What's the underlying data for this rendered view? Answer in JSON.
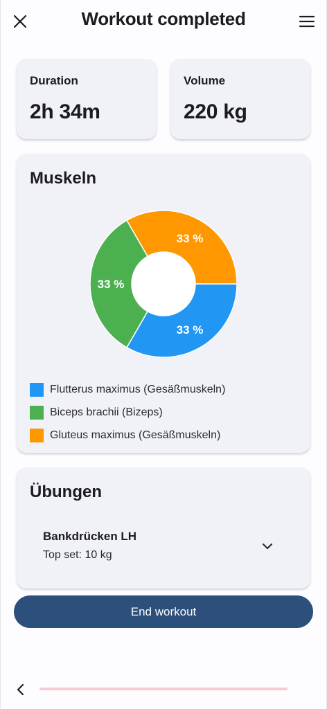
{
  "header": {
    "title": "Workout completed",
    "close_icon": "close-icon",
    "menu_icon": "menu-icon"
  },
  "stats": {
    "duration_label": "Duration",
    "duration_value": "2h 34m",
    "volume_label": "Volume",
    "volume_value": "220 kg"
  },
  "muscles": {
    "title": "Muskeln",
    "legend": [
      {
        "label": "Flutterus maximus (Gesäßmuskeln)",
        "color": "#2196f3"
      },
      {
        "label": "Biceps brachii (Bizeps)",
        "color": "#4caf50"
      },
      {
        "label": "Gluteus maximus (Gesäßmuskeln)",
        "color": "#ff9800"
      }
    ]
  },
  "chart_data": {
    "type": "pie",
    "donut": true,
    "categories": [
      "Flutterus maximus (Gesäßmuskeln)",
      "Biceps brachii (Bizeps)",
      "Gluteus maximus (Gesäßmuskeln)"
    ],
    "values": [
      33,
      33,
      33
    ],
    "labels": [
      "33 %",
      "33 %",
      "33 %"
    ],
    "colors": [
      "#2196f3",
      "#4caf50",
      "#ff9800"
    ],
    "title": "Muskeln",
    "legend_position": "bottom"
  },
  "exercises": {
    "title": "Übungen",
    "items": [
      {
        "name": "Bankdrücken LH",
        "detail": "Top set: 10 kg"
      }
    ]
  },
  "actions": {
    "end_label": "End workout"
  },
  "nav": {
    "back_icon": "chevron-left-icon"
  }
}
